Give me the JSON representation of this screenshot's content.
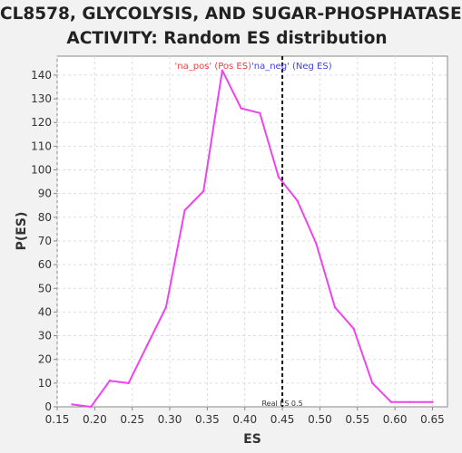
{
  "chart_data": {
    "type": "line",
    "title_lines": [
      "CL8578, GLYCOLYSIS, AND SUGAR-PHOSPHATASE",
      "ACTIVITY: Random ES distribution"
    ],
    "xlabel": "ES",
    "ylabel": "P(ES)",
    "xlim": [
      0.15,
      0.67
    ],
    "ylim": [
      0,
      148
    ],
    "xticks": [
      "0.15",
      "0.20",
      "0.25",
      "0.30",
      "0.35",
      "0.40",
      "0.45",
      "0.50",
      "0.55",
      "0.60",
      "0.65"
    ],
    "yticks": [
      "0",
      "10",
      "20",
      "30",
      "40",
      "50",
      "60",
      "70",
      "80",
      "90",
      "100",
      "110",
      "120",
      "130",
      "140"
    ],
    "grid": true,
    "series": [
      {
        "color": "#ee44ee",
        "x": [
          0.17,
          0.195,
          0.22,
          0.245,
          0.27,
          0.295,
          0.32,
          0.345,
          0.37,
          0.395,
          0.42,
          0.445,
          0.47,
          0.495,
          0.52,
          0.545,
          0.57,
          0.595,
          0.62,
          0.65
        ],
        "y": [
          1,
          0,
          11,
          10,
          26,
          42,
          83,
          91,
          142,
          126,
          124,
          97,
          87,
          69,
          42,
          33,
          10,
          2,
          2,
          2
        ]
      }
    ],
    "real_es": {
      "x": 0.45,
      "label": "Real ES 0.5"
    },
    "annotations": {
      "pos_label": "'na_pos' (Pos ES)",
      "neg_label": "'na_neg' (Neg ES)",
      "pos_color": "#e84040",
      "neg_color": "#4040dd"
    }
  }
}
